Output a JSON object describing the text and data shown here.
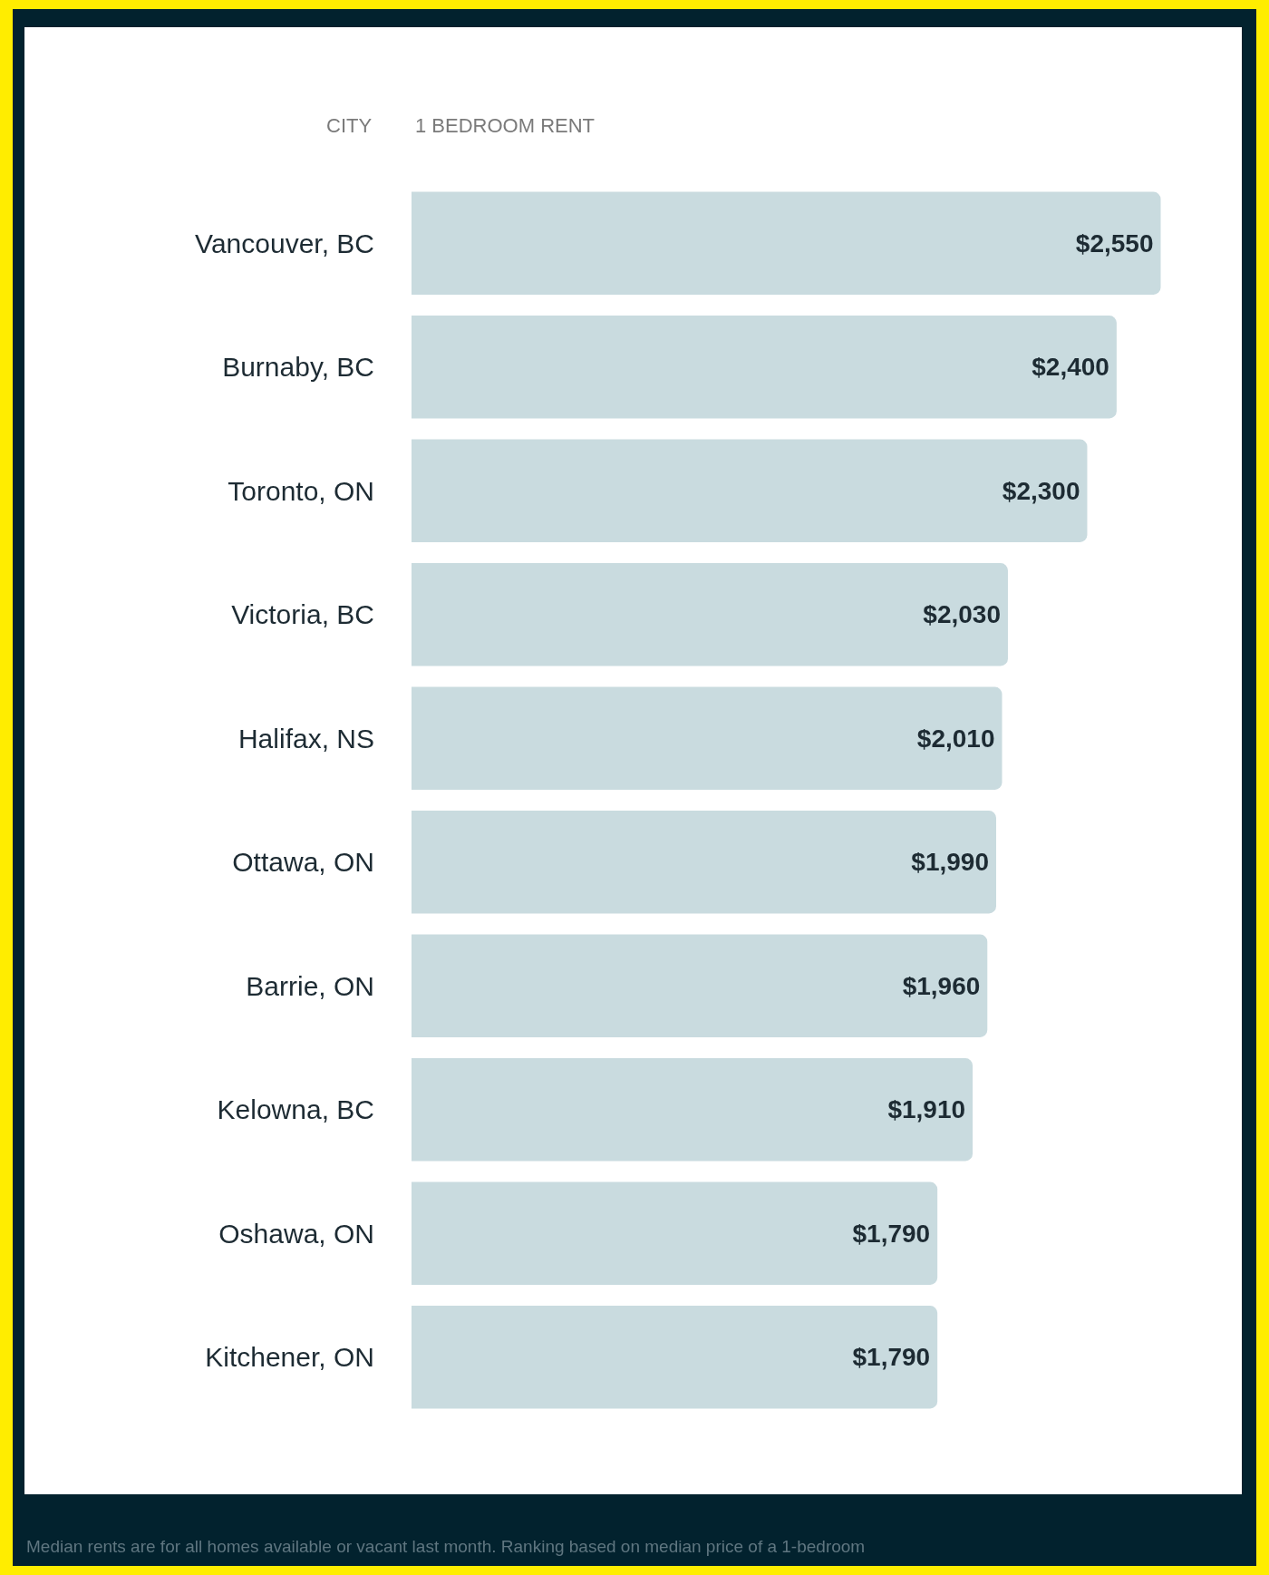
{
  "chart_data": {
    "type": "bar",
    "orientation": "horizontal",
    "xlabel": "1 BEDROOM RENT",
    "ylabel": "CITY",
    "categories": [
      "Vancouver, BC",
      "Burnaby, BC",
      "Toronto, ON",
      "Victoria, BC",
      "Halifax, NS",
      "Ottawa, ON",
      "Barrie, ON",
      "Kelowna, BC",
      "Oshawa, ON",
      "Kitchener, ON"
    ],
    "values": [
      2550,
      2400,
      2300,
      2030,
      2010,
      1990,
      1960,
      1910,
      1790,
      1790
    ],
    "value_labels": [
      "$2,550",
      "$2,400",
      "$2,300",
      "$2,030",
      "$2,010",
      "$1,990",
      "$1,960",
      "$1,910",
      "$1,790",
      "$1,790"
    ],
    "color": "#c9dbdf",
    "tick_labels": "y",
    "legend": false,
    "annotations": [
      "Median rents are for all homes available or vacant last month. Ranking based on median price of a 1-bedroom"
    ]
  }
}
